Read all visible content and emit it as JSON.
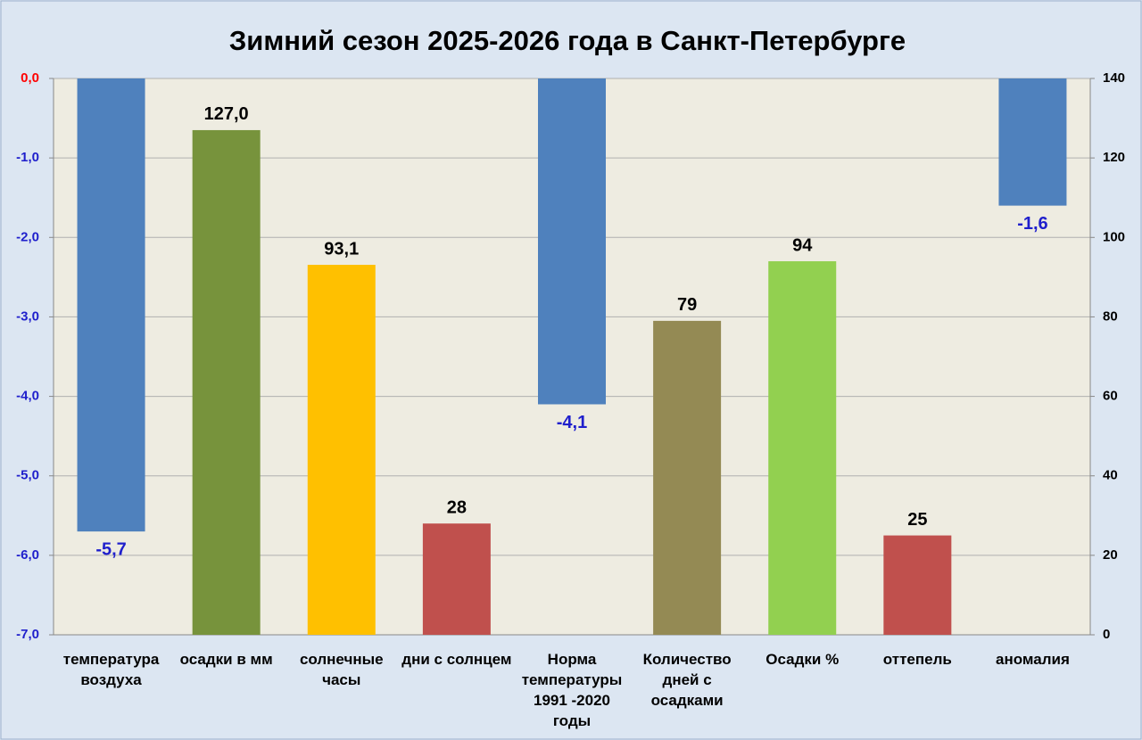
{
  "chart_data": {
    "type": "bar",
    "title": "Зимний сезон 2025-2026 года в Санкт-Петербурге",
    "categories": [
      "температура воздуха",
      "осадки в мм",
      "солнечные часы",
      "дни с солнцем",
      "Норма температуры 1991 -2020 годы",
      "Количество дней с осадками",
      "Осадки %",
      "оттепель",
      "аномалия"
    ],
    "series": [
      {
        "axis": "y",
        "values": [
          -5.7,
          null,
          null,
          null,
          -4.1,
          null,
          null,
          null,
          -1.6
        ],
        "value_labels": [
          "-5,7",
          null,
          null,
          null,
          "-4,1",
          null,
          null,
          null,
          "-1,6"
        ],
        "colors": [
          "#4f81bd",
          null,
          null,
          null,
          "#4f81bd",
          null,
          null,
          null,
          "#4f81bd"
        ]
      },
      {
        "axis": "y2",
        "values": [
          null,
          127.0,
          93.1,
          28,
          null,
          79,
          94,
          25,
          null
        ],
        "value_labels": [
          null,
          "127,0",
          "93,1",
          null,
          null,
          null,
          null,
          null,
          null
        ],
        "colors": [
          null,
          "#77933c",
          "#ffc000",
          "#c0504d",
          null,
          "#948a54",
          "#92d050",
          "#c0504d",
          null
        ]
      }
    ],
    "ylim": [
      -7,
      0
    ],
    "yticks": [
      {
        "value": 0,
        "label": "0,0"
      },
      {
        "value": -1,
        "label": "-1,0"
      },
      {
        "value": -2,
        "label": "-2,0"
      },
      {
        "value": -3,
        "label": "-3,0"
      },
      {
        "value": -4,
        "label": "-4,0"
      },
      {
        "value": -5,
        "label": "-5,0"
      },
      {
        "value": -6,
        "label": "-6,0"
      },
      {
        "value": -7,
        "label": "-7,0"
      }
    ],
    "y2lim": [
      0,
      140
    ],
    "y2ticks": [
      0,
      20,
      40,
      60,
      80,
      100,
      120,
      140
    ],
    "grid": true
  }
}
